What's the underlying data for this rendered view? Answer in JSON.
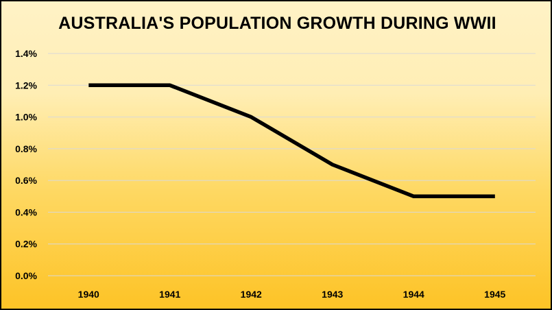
{
  "chart_data": {
    "type": "line",
    "title": "AUSTRALIA'S POPULATION GROWTH DURING WWII",
    "xlabel": "",
    "ylabel": "",
    "categories": [
      "1940",
      "1941",
      "1942",
      "1943",
      "1944",
      "1945"
    ],
    "series": [
      {
        "values": [
          1.2,
          1.2,
          1.0,
          0.7,
          0.5,
          0.5
        ],
        "color": "#000000"
      }
    ],
    "y_ticks": [
      0.0,
      0.2,
      0.4,
      0.6,
      0.8,
      1.0,
      1.2,
      1.4
    ],
    "y_tick_labels": [
      "0.0%",
      "0.2%",
      "0.4%",
      "0.6%",
      "0.8%",
      "1.0%",
      "1.2%",
      "1.4%"
    ],
    "ylim": [
      0,
      1.4
    ],
    "grid": true,
    "legend": "none",
    "colors": {
      "background_top": "#fff2c6",
      "background_bottom": "#fdc326",
      "gridline": "#d9d9d9",
      "line": "#000000"
    }
  }
}
